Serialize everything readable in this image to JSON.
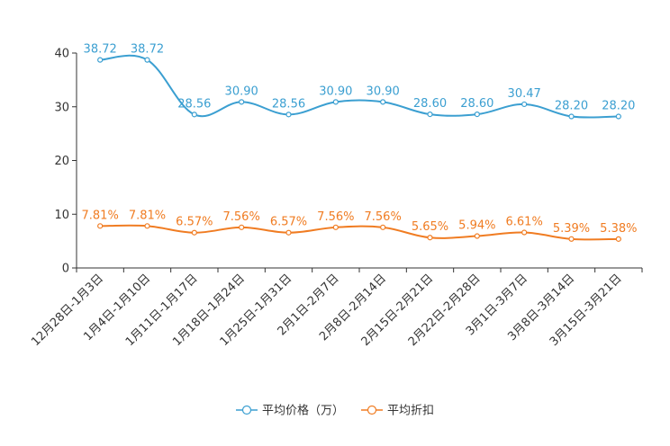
{
  "chart_data": {
    "type": "line",
    "title": "",
    "xlabel": "",
    "ylabel": "",
    "ylim": [
      0,
      40
    ],
    "yticks": [
      0,
      10,
      20,
      30,
      40
    ],
    "grid": false,
    "legend_position": "bottom-center",
    "categories": [
      "12月28日-1月3日",
      "1月4日-1月10日",
      "1月11日-1月17日",
      "1月18日-1月24日",
      "1月25日-1月31日",
      "2月1日-2月7日",
      "2月8日-2月14日",
      "2月15日-2月21日",
      "2月22日-2月28日",
      "3月1日-3月7日",
      "3月8日-3月14日",
      "3月15日-3月21日"
    ],
    "series": [
      {
        "name": "平均价格（万）",
        "color": "#3b9fd1",
        "values": [
          38.72,
          38.72,
          28.56,
          30.9,
          28.56,
          30.9,
          30.9,
          28.6,
          28.6,
          30.47,
          28.2,
          28.2
        ],
        "labels": [
          "38.72",
          "38.72",
          "28.56",
          "30.90",
          "28.56",
          "30.90",
          "30.90",
          "28.60",
          "28.60",
          "30.47",
          "28.20",
          "28.20"
        ]
      },
      {
        "name": "平均折扣",
        "color": "#f07c22",
        "values": [
          7.81,
          7.81,
          6.57,
          7.56,
          6.57,
          7.56,
          7.56,
          5.65,
          5.94,
          6.61,
          5.39,
          5.38
        ],
        "labels": [
          "7.81%",
          "7.81%",
          "6.57%",
          "7.56%",
          "6.57%",
          "7.56%",
          "7.56%",
          "5.65%",
          "5.94%",
          "6.61%",
          "5.39%",
          "5.38%"
        ]
      }
    ]
  }
}
